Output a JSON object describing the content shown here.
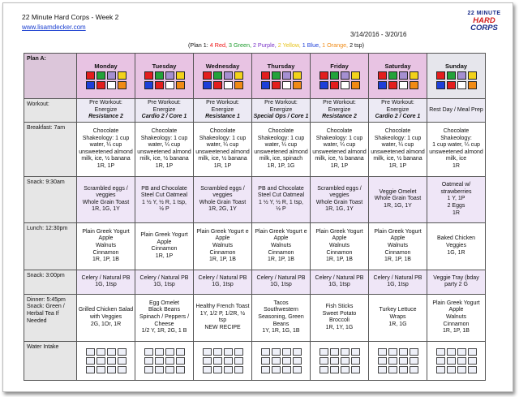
{
  "header": {
    "title": "22 Minute Hard Corps - Week 2",
    "url": "www.lisamdecker.com",
    "dates": "3/14/2016 - 3/20/16",
    "logo": {
      "line1": "22 MINUTE",
      "line2": "HARD",
      "line3": "CORPS"
    }
  },
  "plan_summary": {
    "prefix": "(Plan 1:",
    "red": "4 Red,",
    "green": "3 Green,",
    "purple": "2 Purple,",
    "yellow": "2 Yellow,",
    "blue": "1 Blue,",
    "orange": "1 Orange,",
    "suffix": "2 tsp)"
  },
  "colors": {
    "red": "#e31d1d",
    "green": "#23a23a",
    "purple": "#a58fd1",
    "yellow": "#f2d21a",
    "blue": "#1d3fd8",
    "orange": "#f08a14",
    "header_bg": "#e8c3e3",
    "snack_bg": "#efe6f7"
  },
  "plan_label": "Plan A:",
  "days": [
    "Monday",
    "Tuesday",
    "Wednesday",
    "Thursday",
    "Friday",
    "Saturday",
    "Sunday"
  ],
  "rows": {
    "workout": {
      "label": "Workout:",
      "cells": [
        {
          "line1": "Pre Workout: Energize",
          "line2": "Resistance 2"
        },
        {
          "line1": "Pre Workout: Energize",
          "line2": "Cardio 2 / Core 1"
        },
        {
          "line1": "Pre Workout: Energize",
          "line2": "Resistance 1"
        },
        {
          "line1": "Pre Workout: Energize",
          "line2": "Special Ops / Core 1"
        },
        {
          "line1": "Pre Workout: Energize",
          "line2": "Resistance 2"
        },
        {
          "line1": "Pre Workout: Energize",
          "line2": "Cardio 2 / Core 1"
        },
        {
          "line1": "Rest Day / Meal Prep",
          "line2": ""
        }
      ]
    },
    "breakfast": {
      "label": "Breakfast: 7am",
      "cells": [
        [
          "Chocolate",
          "Shakeology: 1 cup",
          "water, ¼ cup",
          "unsweetened almond",
          "milk, ice, ½ banana",
          "1R, 1P"
        ],
        [
          "Chocolate",
          "Shakeology: 1 cup",
          "water, ¼ cup",
          "unsweetened almond",
          "milk, ice, ½ banana",
          "1R, 1P"
        ],
        [
          "Chocolate",
          "Shakeology: 1 cup",
          "water, ¼ cup",
          "unsweetened almond",
          "milk, ice, ½ banana",
          "1R, 1P"
        ],
        [
          "Chocolate",
          "Shakeology: 1 cup",
          "water, ¼ cup",
          "unsweetened almond",
          "milk, ice, spinach",
          "1R, 1P, 1G"
        ],
        [
          "Chocolate",
          "Shakeology: 1 cup",
          "water, ¼ cup",
          "unsweetened almond",
          "milk, ice, ½ banana",
          "1R, 1P"
        ],
        [
          "Chocolate",
          "Shakeology: 1 cup",
          "water, ¼ cup",
          "unsweetened almond",
          "milk, ice, ½ banana",
          "1R, 1P"
        ],
        [
          "Chocolate Shakeology:",
          "1 cup water, ¼ cup",
          "unsweetened almond",
          "milk, ice",
          "1R"
        ]
      ]
    },
    "snack1": {
      "label": "Snack: 9:30am",
      "cells": [
        [
          "Scrambled eggs /",
          "veggies",
          "Whole Grain Toast",
          "1R, 1G, 1Y"
        ],
        [
          "PB and Chocolate",
          "Steel Cut Oatmeal",
          "1 ½ Y, ½  R, 1 tsp,",
          "½ P"
        ],
        [
          "Scrambled eggs /",
          "veggies",
          "Whole Grain Toast",
          "1R, 2G, 1Y"
        ],
        [
          "PB and Chocolate",
          "Steel Cut Oatmeal",
          "1 ½ Y, ½  R, 1 tsp,",
          "½ P"
        ],
        [
          "Scrambled eggs /",
          "veggies",
          "Whole Grain Toast",
          "1R, 1G, 1Y"
        ],
        [
          "Veggie Omelet",
          "Whole Grain Toast",
          "1R, 1G, 1Y"
        ],
        [
          "Oatmeal w/",
          "strawberries",
          "1 Y, 1P",
          "2 Eggs",
          "1R"
        ]
      ]
    },
    "lunch": {
      "label": "Lunch: 12:30pm",
      "cells": [
        [
          "Plain Greek Yogurt",
          "Apple",
          "Walnuts",
          "Cinnamon",
          "1R, 1P, 1B"
        ],
        [
          "Plain Greek Yogurt",
          "Apple",
          "Cinnamon",
          "1R, 1P"
        ],
        [
          "Plain Greek Yogurt e",
          "Apple",
          "Walnuts",
          "Cinnamon",
          "1R, 1P, 1B"
        ],
        [
          "Plain Greek Yogurt e",
          "Apple",
          "Walnuts",
          "Cinnamon",
          "1R, 1P, 1B"
        ],
        [
          "Plain Greek Yogurt",
          "Apple",
          "Walnuts",
          "Cinnamon",
          "1R, 1P, 1B"
        ],
        [
          "Plain Greek Yogurt",
          "Apple",
          "Walnuts",
          "Cinnamon",
          "1R, 1P, 1B"
        ],
        [
          "Baked Chicken",
          "Veggies",
          "1G, 1R"
        ]
      ]
    },
    "snack2": {
      "label": "Snack: 3:00pm",
      "cells": [
        [
          "Celery / Natural PB",
          "1G, 1tsp"
        ],
        [
          "Celery / Natural PB",
          "1G, 1tsp"
        ],
        [
          "Celery / Natural PB",
          "1G, 1tsp"
        ],
        [
          "Celery / Natural PB",
          "1G, 1tsp"
        ],
        [
          "Celery / Natural PB",
          "1G, 1tsp"
        ],
        [
          "Celery / Natural PB",
          "1G, 1tsp"
        ],
        [
          "Veggie Tray (bday",
          "party 2 G"
        ]
      ]
    },
    "dinner": {
      "label": "Dinner: 5:45pm\nSnack: Green /\nHerbal Tea If\nNeeded",
      "label_lines": [
        "Dinner: 5:45pm",
        "Snack: Green /",
        "Herbal Tea If",
        "Needed"
      ],
      "cells": [
        [
          "Grilled Chicken Salad",
          "with Veggies",
          "2G, 1Or, 1R"
        ],
        [
          "Egg Omelet",
          "Black Beans",
          "Spinach / Peppers /",
          "Cheese",
          "1/2 Y, 1R, 2G, 1 B"
        ],
        [
          "Healthy French Toast",
          "1Y, 1/2 P, 1/2R, ½",
          "tsp",
          "NEW RECIPE"
        ],
        [
          "Tacos",
          "Southwestern",
          "Seasoning, Green",
          "Beans",
          "1Y, 1R, 1G, 1B"
        ],
        [
          "Fish Sticks",
          "Sweet Potato",
          "Broccoli",
          "1R, 1Y, 1G"
        ],
        [
          "Turkey Lettuce",
          "Wraps",
          "1R, 1G"
        ],
        [
          "Plain Greek Yogurt",
          "Apple",
          "Walnuts",
          "Cinnamon",
          "1R, 1P, 1B"
        ]
      ]
    },
    "water": {
      "label": "Water Intake"
    }
  }
}
